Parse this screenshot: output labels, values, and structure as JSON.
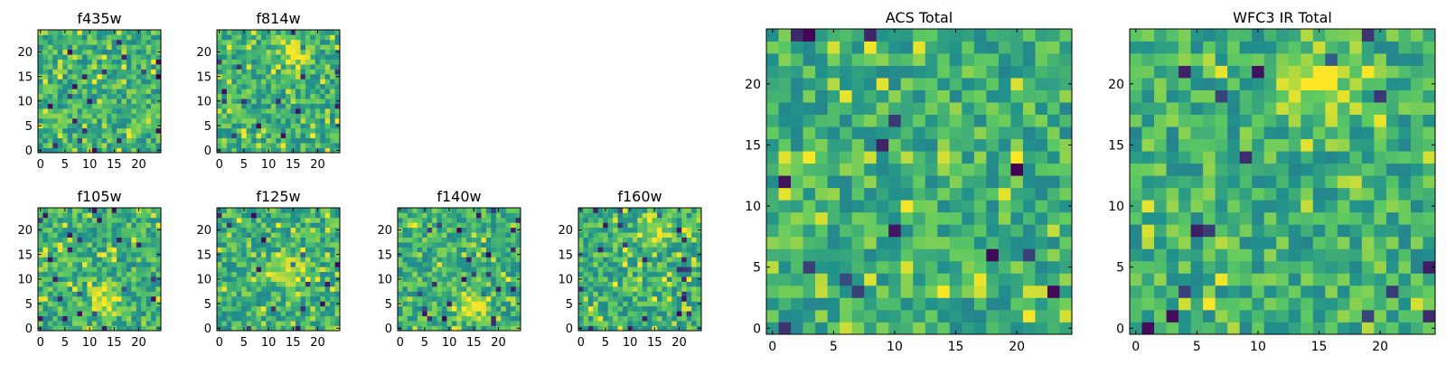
{
  "colors": {
    "low": "#440154",
    "mid_low": "#31688e",
    "mid": "#21918c",
    "mid_high": "#5ec962",
    "high": "#fde725",
    "frame": "#000000",
    "background": "#ffffff"
  },
  "chart_data": [
    {
      "type": "heatmap",
      "title": "f435w",
      "grid_size": 25,
      "x_ticks": [
        "0",
        "5",
        "10",
        "15",
        "20"
      ],
      "y_ticks": [
        "0",
        "5",
        "10",
        "15",
        "20"
      ],
      "colormap": "viridis",
      "value_range": [
        0,
        1
      ],
      "seed": 11,
      "hotspot": null
    },
    {
      "type": "heatmap",
      "title": "f814w",
      "grid_size": 25,
      "x_ticks": [
        "0",
        "5",
        "10",
        "15",
        "20"
      ],
      "y_ticks": [
        "0",
        "5",
        "10",
        "15",
        "20"
      ],
      "colormap": "viridis",
      "value_range": [
        0,
        1
      ],
      "seed": 23,
      "hotspot": [
        15,
        20
      ]
    },
    {
      "type": "heatmap",
      "title": "f105w",
      "grid_size": 25,
      "x_ticks": [
        "0",
        "5",
        "10",
        "15",
        "20"
      ],
      "y_ticks": [
        "0",
        "5",
        "10",
        "15",
        "20"
      ],
      "colormap": "viridis",
      "value_range": [
        0,
        1
      ],
      "seed": 37,
      "hotspot": [
        13,
        6
      ]
    },
    {
      "type": "heatmap",
      "title": "f125w",
      "grid_size": 25,
      "x_ticks": [
        "0",
        "5",
        "10",
        "15",
        "20"
      ],
      "y_ticks": [
        "0",
        "5",
        "10",
        "15",
        "20"
      ],
      "colormap": "viridis",
      "value_range": [
        0,
        1
      ],
      "seed": 41,
      "hotspot": [
        14,
        12
      ]
    },
    {
      "type": "heatmap",
      "title": "f140w",
      "grid_size": 25,
      "x_ticks": [
        "0",
        "5",
        "10",
        "15",
        "20"
      ],
      "y_ticks": [
        "0",
        "5",
        "10",
        "15",
        "20"
      ],
      "colormap": "viridis",
      "value_range": [
        0,
        1
      ],
      "seed": 53,
      "hotspot": [
        15,
        5
      ]
    },
    {
      "type": "heatmap",
      "title": "f160w",
      "grid_size": 25,
      "x_ticks": [
        "0",
        "5",
        "10",
        "15",
        "20"
      ],
      "y_ticks": [
        "0",
        "5",
        "10",
        "15",
        "20"
      ],
      "colormap": "viridis",
      "value_range": [
        0,
        1
      ],
      "seed": 67,
      "hotspot": [
        15,
        20
      ]
    },
    {
      "type": "heatmap",
      "title": "ACS Total",
      "grid_size": 25,
      "x_ticks": [
        "0",
        "5",
        "10",
        "15",
        "20"
      ],
      "y_ticks": [
        "0",
        "5",
        "10",
        "15",
        "20"
      ],
      "colormap": "viridis",
      "value_range": [
        0,
        1
      ],
      "seed": 79,
      "hotspot": null
    },
    {
      "type": "heatmap",
      "title": "WFC3 IR Total",
      "grid_size": 25,
      "x_ticks": [
        "0",
        "5",
        "10",
        "15",
        "20"
      ],
      "y_ticks": [
        "0",
        "5",
        "10",
        "15",
        "20"
      ],
      "colormap": "viridis",
      "value_range": [
        0,
        1
      ],
      "seed": 97,
      "hotspot": [
        15,
        20
      ]
    }
  ]
}
